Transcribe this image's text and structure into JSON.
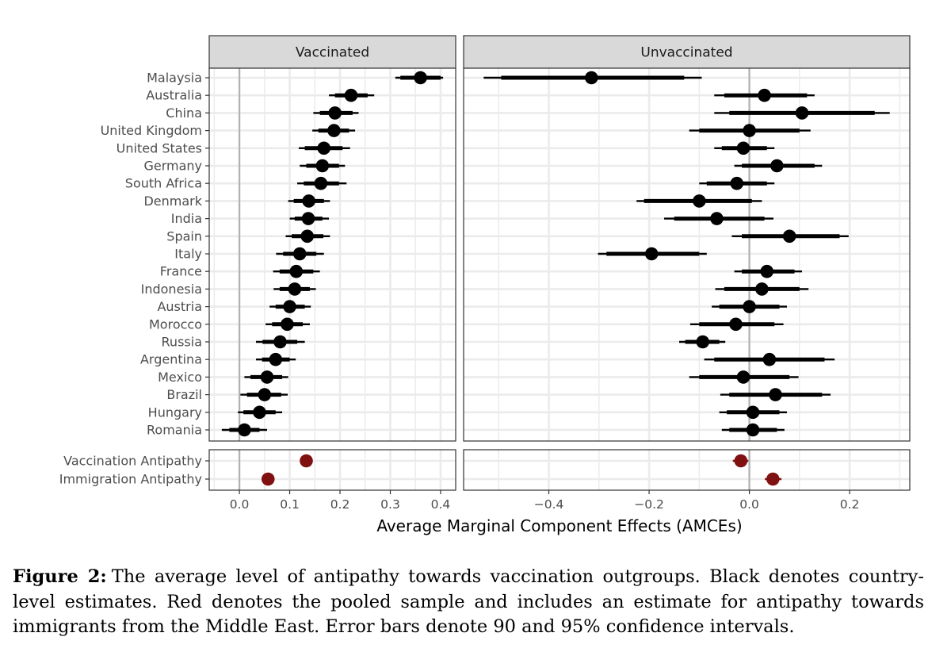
{
  "chart_data": {
    "type": "dot-and-whisker",
    "xlabel": "Average Marginal Component Effects (AMCEs)",
    "panels": [
      {
        "title": "Vaccinated",
        "xlim": [
          -0.06,
          0.43
        ],
        "ticks": [
          0.0,
          0.1,
          0.2,
          0.3,
          0.4
        ],
        "tick_labels": [
          "0.0",
          "0.1",
          "0.2",
          "0.3",
          "0.4"
        ],
        "countries": [
          {
            "name": "Malaysia",
            "est": 0.36,
            "ci90": [
              0.32,
              0.4
            ],
            "ci95": [
              0.31,
              0.405
            ]
          },
          {
            "name": "Australia",
            "est": 0.222,
            "ci90": [
              0.19,
              0.255
            ],
            "ci95": [
              0.178,
              0.268
            ]
          },
          {
            "name": "China",
            "est": 0.19,
            "ci90": [
              0.16,
              0.225
            ],
            "ci95": [
              0.147,
              0.237
            ]
          },
          {
            "name": "United Kingdom",
            "est": 0.188,
            "ci90": [
              0.157,
              0.218
            ],
            "ci95": [
              0.145,
              0.23
            ]
          },
          {
            "name": "United States",
            "est": 0.168,
            "ci90": [
              0.13,
              0.205
            ],
            "ci95": [
              0.118,
              0.22
            ]
          },
          {
            "name": "Germany",
            "est": 0.165,
            "ci90": [
              0.133,
              0.198
            ],
            "ci95": [
              0.12,
              0.21
            ]
          },
          {
            "name": "South Africa",
            "est": 0.162,
            "ci90": [
              0.128,
              0.198
            ],
            "ci95": [
              0.115,
              0.213
            ]
          },
          {
            "name": "Denmark",
            "est": 0.138,
            "ci90": [
              0.108,
              0.168
            ],
            "ci95": [
              0.097,
              0.18
            ]
          },
          {
            "name": "India",
            "est": 0.137,
            "ci90": [
              0.11,
              0.165
            ],
            "ci95": [
              0.1,
              0.178
            ]
          },
          {
            "name": "Spain",
            "est": 0.135,
            "ci90": [
              0.104,
              0.167
            ],
            "ci95": [
              0.092,
              0.18
            ]
          },
          {
            "name": "Italy",
            "est": 0.12,
            "ci90": [
              0.087,
              0.153
            ],
            "ci95": [
              0.073,
              0.168
            ]
          },
          {
            "name": "France",
            "est": 0.113,
            "ci90": [
              0.08,
              0.147
            ],
            "ci95": [
              0.067,
              0.16
            ]
          },
          {
            "name": "Indonesia",
            "est": 0.11,
            "ci90": [
              0.08,
              0.14
            ],
            "ci95": [
              0.068,
              0.152
            ]
          },
          {
            "name": "Austria",
            "est": 0.1,
            "ci90": [
              0.072,
              0.13
            ],
            "ci95": [
              0.06,
              0.142
            ]
          },
          {
            "name": "Morocco",
            "est": 0.095,
            "ci90": [
              0.065,
              0.126
            ],
            "ci95": [
              0.052,
              0.14
            ]
          },
          {
            "name": "Russia",
            "est": 0.081,
            "ci90": [
              0.046,
              0.115
            ],
            "ci95": [
              0.033,
              0.13
            ]
          },
          {
            "name": "Argentina",
            "est": 0.072,
            "ci90": [
              0.045,
              0.1
            ],
            "ci95": [
              0.033,
              0.112
            ]
          },
          {
            "name": "Mexico",
            "est": 0.055,
            "ci90": [
              0.022,
              0.085
            ],
            "ci95": [
              0.01,
              0.097
            ]
          },
          {
            "name": "Brazil",
            "est": 0.05,
            "ci90": [
              0.015,
              0.083
            ],
            "ci95": [
              0.002,
              0.096
            ]
          },
          {
            "name": "Hungary",
            "est": 0.04,
            "ci90": [
              0.008,
              0.072
            ],
            "ci95": [
              -0.003,
              0.085
            ]
          },
          {
            "name": "Romania",
            "est": 0.01,
            "ci90": [
              -0.02,
              0.04
            ],
            "ci95": [
              -0.035,
              0.055
            ]
          }
        ],
        "pooled": [
          {
            "name": "Vaccination Antipathy",
            "est": 0.133,
            "ci90": [
              0.128,
              0.138
            ],
            "ci95": [
              0.126,
              0.14
            ]
          },
          {
            "name": "Immigration Antipathy",
            "est": 0.057,
            "ci90": [
              0.052,
              0.062
            ],
            "ci95": [
              0.05,
              0.064
            ]
          }
        ]
      },
      {
        "title": "Unvaccinated",
        "xlim": [
          -0.57,
          0.32
        ],
        "ticks": [
          -0.4,
          -0.2,
          0.0,
          0.2
        ],
        "tick_labels": [
          "−0.4",
          "−0.2",
          "0.0",
          "0.2"
        ],
        "countries": [
          {
            "name": "Malaysia",
            "est": -0.315,
            "ci90": [
              -0.495,
              -0.13
            ],
            "ci95": [
              -0.53,
              -0.095
            ]
          },
          {
            "name": "Australia",
            "est": 0.03,
            "ci90": [
              -0.05,
              0.115
            ],
            "ci95": [
              -0.07,
              0.13
            ]
          },
          {
            "name": "China",
            "est": 0.105,
            "ci90": [
              -0.04,
              0.25
            ],
            "ci95": [
              -0.07,
              0.28
            ]
          },
          {
            "name": "United Kingdom",
            "est": 0.0,
            "ci90": [
              -0.1,
              0.1
            ],
            "ci95": [
              -0.12,
              0.122
            ]
          },
          {
            "name": "United States",
            "est": -0.012,
            "ci90": [
              -0.055,
              0.035
            ],
            "ci95": [
              -0.07,
              0.05
            ]
          },
          {
            "name": "Germany",
            "est": 0.055,
            "ci90": [
              -0.015,
              0.13
            ],
            "ci95": [
              -0.03,
              0.145
            ]
          },
          {
            "name": "South Africa",
            "est": -0.025,
            "ci90": [
              -0.085,
              0.035
            ],
            "ci95": [
              -0.1,
              0.05
            ]
          },
          {
            "name": "Denmark",
            "est": -0.1,
            "ci90": [
              -0.21,
              0.005
            ],
            "ci95": [
              -0.225,
              0.025
            ]
          },
          {
            "name": "India",
            "est": -0.065,
            "ci90": [
              -0.15,
              0.03
            ],
            "ci95": [
              -0.17,
              0.048
            ]
          },
          {
            "name": "Spain",
            "est": 0.08,
            "ci90": [
              -0.015,
              0.18
            ],
            "ci95": [
              -0.035,
              0.198
            ]
          },
          {
            "name": "Italy",
            "est": -0.195,
            "ci90": [
              -0.285,
              -0.1
            ],
            "ci95": [
              -0.302,
              -0.085
            ]
          },
          {
            "name": "France",
            "est": 0.035,
            "ci90": [
              -0.015,
              0.09
            ],
            "ci95": [
              -0.03,
              0.105
            ]
          },
          {
            "name": "Indonesia",
            "est": 0.025,
            "ci90": [
              -0.05,
              0.1
            ],
            "ci95": [
              -0.068,
              0.118
            ]
          },
          {
            "name": "Austria",
            "est": 0.0,
            "ci90": [
              -0.06,
              0.06
            ],
            "ci95": [
              -0.075,
              0.075
            ]
          },
          {
            "name": "Morocco",
            "est": -0.027,
            "ci90": [
              -0.1,
              0.05
            ],
            "ci95": [
              -0.118,
              0.068
            ]
          },
          {
            "name": "Russia",
            "est": -0.093,
            "ci90": [
              -0.128,
              -0.06
            ],
            "ci95": [
              -0.14,
              -0.048
            ]
          },
          {
            "name": "Argentina",
            "est": 0.04,
            "ci90": [
              -0.07,
              0.15
            ],
            "ci95": [
              -0.09,
              0.17
            ]
          },
          {
            "name": "Mexico",
            "est": -0.012,
            "ci90": [
              -0.1,
              0.08
            ],
            "ci95": [
              -0.12,
              0.098
            ]
          },
          {
            "name": "Brazil",
            "est": 0.052,
            "ci90": [
              -0.04,
              0.145
            ],
            "ci95": [
              -0.058,
              0.162
            ]
          },
          {
            "name": "Hungary",
            "est": 0.007,
            "ci90": [
              -0.045,
              0.06
            ],
            "ci95": [
              -0.06,
              0.075
            ]
          },
          {
            "name": "Romania",
            "est": 0.007,
            "ci90": [
              -0.04,
              0.055
            ],
            "ci95": [
              -0.055,
              0.07
            ]
          }
        ],
        "pooled": [
          {
            "name": "Vaccination Antipathy",
            "est": -0.017,
            "ci90": [
              -0.028,
              -0.006
            ],
            "ci95": [
              -0.033,
              -0.002
            ]
          },
          {
            "name": "Immigration Antipathy",
            "est": 0.047,
            "ci90": [
              0.036,
              0.058
            ],
            "ci95": [
              0.031,
              0.064
            ]
          }
        ]
      }
    ]
  },
  "colors": {
    "country": "#000000",
    "pooled": "#7f1111",
    "strip_bg": "#d9d9d9",
    "grid": "#ebebeb",
    "zero_line": "#b3b3b3"
  },
  "caption": {
    "label": "Figure 2:",
    "text": "The average level of antipathy towards vaccination outgroups. Black denotes country-level estimates. Red denotes the pooled sample and includes an estimate for antipathy towards immigrants from the Middle East. Error bars denote 90 and 95% confidence intervals."
  }
}
